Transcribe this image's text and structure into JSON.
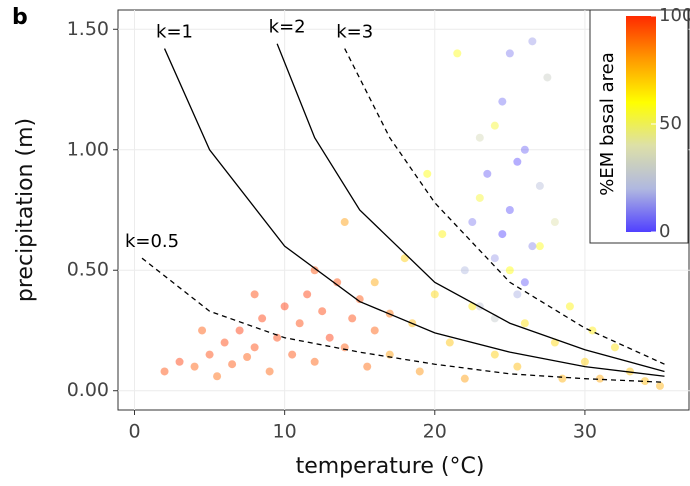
{
  "chart_data": {
    "type": "scatter",
    "panel_label": "b",
    "x_label": "temperature (°C)",
    "y_label": "precipitation (m)",
    "xlim": [
      -1.1,
      37
    ],
    "ylim": [
      -0.08,
      1.58
    ],
    "xticks": [
      0,
      10,
      20,
      30
    ],
    "yticks": [
      {
        "value": 0,
        "label": "0.00"
      },
      {
        "value": 0.5,
        "label": "0.50"
      },
      {
        "value": 1,
        "label": "1.00"
      },
      {
        "value": 1.5,
        "label": "1.50"
      }
    ],
    "grid": true,
    "color_scale": {
      "label": "%EM basal area",
      "min": 0,
      "max": 100,
      "ticks": [
        0,
        50,
        100
      ],
      "colors": [
        "#5040ff",
        "#b0b8e0",
        "#dde0a8",
        "#ffff00",
        "#ff9a00",
        "#ff2a00"
      ]
    },
    "point_opacity": 0.45,
    "series": [
      {
        "x": [
          2,
          3,
          4,
          5,
          5.5,
          6,
          6.5,
          7,
          7.5,
          8,
          8.5,
          9,
          9.5,
          10,
          10.5,
          11,
          11.5,
          12,
          12.5,
          13,
          13.5,
          14,
          14.5,
          15,
          15.5,
          16,
          17,
          12,
          8,
          4.5,
          16,
          17,
          18,
          18.5,
          19,
          20,
          20.5,
          21,
          22,
          22.5,
          23,
          24,
          25,
          25.5,
          26,
          27,
          28,
          28.5,
          29,
          30,
          30.5,
          31,
          32,
          33,
          34,
          35,
          19.5,
          21.5,
          24,
          14,
          22,
          22.5,
          23,
          23.5,
          24,
          24.5,
          25,
          25.5,
          26,
          26.5,
          27,
          27.5,
          24,
          25,
          26,
          23,
          28,
          25.5,
          24.5,
          26.5
        ],
        "values": [
          0.08,
          0.12,
          0.1,
          0.15,
          0.06,
          0.2,
          0.11,
          0.25,
          0.14,
          0.18,
          0.3,
          0.08,
          0.22,
          0.35,
          0.15,
          0.28,
          0.4,
          0.12,
          0.33,
          0.22,
          0.45,
          0.18,
          0.3,
          0.38,
          0.1,
          0.25,
          0.32,
          0.5,
          0.4,
          0.25,
          0.45,
          0.15,
          0.55,
          0.28,
          0.08,
          0.4,
          0.65,
          0.2,
          0.05,
          0.35,
          0.8,
          0.15,
          0.5,
          0.1,
          0.28,
          0.6,
          0.2,
          0.05,
          0.35,
          0.12,
          0.25,
          0.05,
          0.18,
          0.08,
          0.04,
          0.02,
          0.9,
          1.4,
          1.1,
          0.7,
          0.5,
          0.7,
          0.35,
          0.9,
          0.55,
          1.2,
          0.75,
          0.4,
          1.0,
          0.6,
          0.85,
          1.3,
          0.3,
          1.4,
          0.45,
          1.05,
          0.7,
          0.95,
          0.65,
          1.45
        ],
        "em": [
          95,
          98,
          92,
          96,
          90,
          97,
          94,
          99,
          93,
          96,
          98,
          91,
          97,
          99,
          95,
          96,
          98,
          92,
          97,
          99,
          95,
          93,
          96,
          94,
          90,
          92,
          88,
          94,
          96,
          93,
          78,
          80,
          70,
          75,
          82,
          68,
          62,
          72,
          80,
          65,
          55,
          70,
          60,
          74,
          66,
          58,
          68,
          76,
          62,
          70,
          64,
          78,
          66,
          72,
          74,
          76,
          60,
          58,
          55,
          80,
          20,
          10,
          25,
          5,
          15,
          8,
          3,
          18,
          6,
          12,
          22,
          30,
          28,
          10,
          4,
          35,
          40,
          2,
          0,
          15
        ]
      }
    ],
    "curves": [
      {
        "name": "k=0.5",
        "dashed": true,
        "x": [
          0.5,
          5,
          10,
          15,
          20,
          25,
          30,
          35.3
        ],
        "values": [
          0.55,
          0.33,
          0.22,
          0.16,
          0.11,
          0.07,
          0.05,
          0.035
        ]
      },
      {
        "name": "k=1",
        "dashed": false,
        "x": [
          2,
          5,
          10,
          15,
          20,
          25,
          30,
          35.3
        ],
        "values": [
          1.42,
          1.0,
          0.6,
          0.37,
          0.24,
          0.16,
          0.1,
          0.06
        ]
      },
      {
        "name": "k=2",
        "dashed": false,
        "x": [
          9.5,
          12,
          15,
          20,
          25,
          30,
          35.3
        ],
        "values": [
          1.44,
          1.05,
          0.75,
          0.45,
          0.28,
          0.17,
          0.08
        ]
      },
      {
        "name": "k=3",
        "dashed": true,
        "x": [
          14,
          17,
          20,
          25,
          30,
          35.3
        ],
        "values": [
          1.42,
          1.05,
          0.78,
          0.45,
          0.26,
          0.11
        ]
      }
    ]
  }
}
